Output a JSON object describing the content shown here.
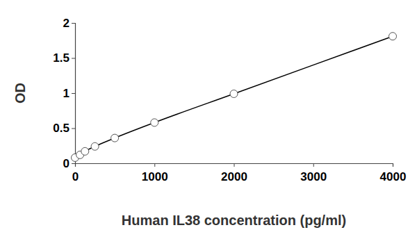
{
  "chart_data": {
    "type": "scatter",
    "x_label": "Human IL38 concentration (pg/ml)",
    "y_label": "OD",
    "x": [
      0,
      62.5,
      125,
      250,
      500,
      1000,
      2000,
      4000
    ],
    "values": [
      0.08,
      0.12,
      0.17,
      0.24,
      0.36,
      0.58,
      0.99,
      1.81
    ],
    "xlim": [
      0,
      4000
    ],
    "xticks": [
      0,
      1000,
      2000,
      3000,
      4000
    ],
    "ylim": [
      0,
      2
    ],
    "yticks": [
      0,
      0.5,
      1,
      1.5,
      2
    ],
    "grid": false,
    "marker": "circle",
    "line_style": "solid",
    "color": "#000000"
  }
}
